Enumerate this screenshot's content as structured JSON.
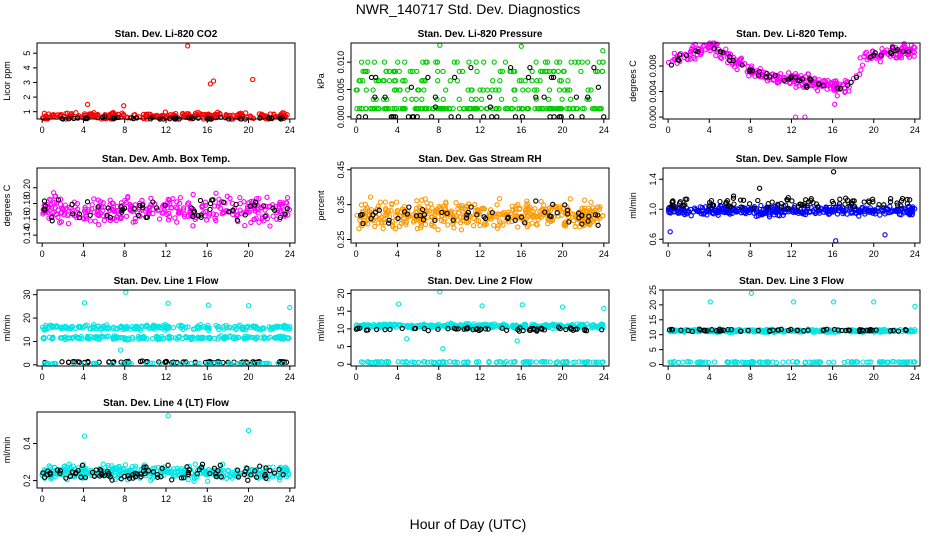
{
  "figure": {
    "title": "NWR_140717  Std. Dev. Diagnostics",
    "xlabel": "Hour of Day (UTC)"
  },
  "chart_data": [
    {
      "type": "scatter",
      "title": "Stan. Dev. Li-820 CO2",
      "ylabel": "Licor ppm",
      "xlim": [
        -0.5,
        24.5
      ],
      "ylim": [
        0.5,
        5.7
      ],
      "xticks": [
        0,
        4,
        8,
        12,
        16,
        20,
        24
      ],
      "yticks": [
        1,
        2,
        3,
        4,
        5
      ],
      "yticklabels": [
        "1",
        "2",
        "3",
        "4",
        "5"
      ],
      "grid": false,
      "series": [
        {
          "color": "#ff0000",
          "count": 260,
          "base": 0.7,
          "spread": 0.35,
          "extras": [
            [
              14.1,
              5.5
            ],
            [
              16.3,
              2.9
            ],
            [
              16.6,
              3.1
            ],
            [
              20.4,
              3.2
            ],
            [
              4.4,
              1.5
            ],
            [
              7.9,
              1.4
            ]
          ]
        },
        {
          "color": "#000000",
          "count": 45,
          "base": 0.55,
          "spread": 0.12,
          "extras": []
        }
      ]
    },
    {
      "type": "scatter",
      "title": "Stan. Dev. Li-820 Pressure",
      "ylabel": "kPa",
      "xlim": [
        -0.5,
        24.5
      ],
      "ylim": [
        -0.0004,
        0.0135
      ],
      "xticks": [
        0,
        4,
        8,
        12,
        16,
        20,
        24
      ],
      "yticks": [
        0.0,
        0.005,
        0.01
      ],
      "yticklabels": [
        "0.000",
        "0.005",
        "0.010"
      ],
      "grid": false,
      "series": [
        {
          "color": "#00cc00",
          "count": 300,
          "base": 0.0015,
          "spread": 0.0085,
          "levels": true,
          "extras": [
            [
              8.1,
              0.0131
            ],
            [
              23.9,
              0.0121
            ],
            [
              16.0,
              0.0129
            ]
          ]
        },
        {
          "color": "#000000",
          "count": 50,
          "base": 0.0,
          "spread": 0.009,
          "levels": true,
          "extras": []
        }
      ]
    },
    {
      "type": "scatter",
      "title": "Stan. Dev. Li-820 Temp.",
      "ylabel": "degrees C",
      "xlim": [
        -0.5,
        24.5
      ],
      "ylim": [
        -0.0003,
        0.0116
      ],
      "xticks": [
        0,
        4,
        8,
        12,
        16,
        20,
        24
      ],
      "yticks": [
        0.0,
        0.004,
        0.008
      ],
      "yticklabels": [
        "0.000",
        "0.004",
        "0.008"
      ],
      "grid": false,
      "series": [
        {
          "color": "#ff00ff",
          "count": 320,
          "curve": true,
          "spread": 0.0016,
          "extras": [
            [
              12.4,
              0.0
            ],
            [
              13.3,
              0.0
            ],
            [
              16.2,
              0.002
            ]
          ]
        },
        {
          "color": "#000000",
          "count": 55,
          "curve": true,
          "spread": 0.0012,
          "extras": []
        }
      ]
    },
    {
      "type": "scatter",
      "title": "Stan. Dev. Amb. Box Temp.",
      "ylabel": "degrees C",
      "xlim": [
        -0.5,
        24.5
      ],
      "ylim": [
        0.13,
        0.225
      ],
      "xticks": [
        0,
        4,
        8,
        12,
        16,
        20,
        24
      ],
      "yticks": [
        0.14,
        0.16,
        0.18,
        0.2
      ],
      "yticklabels": [
        "0.14",
        "0.16",
        "0.18",
        "0.20"
      ],
      "grid": false,
      "series": [
        {
          "color": "#ff00ff",
          "count": 320,
          "base": 0.172,
          "spread": 0.024,
          "extras": []
        },
        {
          "color": "#000000",
          "count": 60,
          "base": 0.172,
          "spread": 0.02,
          "extras": []
        }
      ]
    },
    {
      "type": "scatter",
      "title": "Stan. Dev. Gas Stream RH",
      "ylabel": "percent",
      "xlim": [
        -0.5,
        24.5
      ],
      "ylim": [
        0.24,
        0.455
      ],
      "xticks": [
        0,
        4,
        8,
        12,
        16,
        20,
        24
      ],
      "yticks": [
        0.25,
        0.35,
        0.45
      ],
      "yticklabels": [
        "0.25",
        "0.35",
        "0.45"
      ],
      "grid": false,
      "series": [
        {
          "color": "#ff9900",
          "count": 420,
          "base": 0.322,
          "spread": 0.055,
          "extras": []
        },
        {
          "color": "#000000",
          "count": 55,
          "base": 0.322,
          "spread": 0.05,
          "extras": []
        }
      ]
    },
    {
      "type": "scatter",
      "title": "Stan. Dev. Sample Flow",
      "ylabel": "ml/min",
      "xlim": [
        -0.5,
        24.5
      ],
      "ylim": [
        0.55,
        1.55
      ],
      "xticks": [
        0,
        4,
        8,
        12,
        16,
        20,
        24
      ],
      "yticks": [
        0.6,
        1.0,
        1.4
      ],
      "yticklabels": [
        "0.6",
        "1.0",
        "1.4"
      ],
      "grid": false,
      "series": [
        {
          "color": "#0000ff",
          "count": 380,
          "base": 0.98,
          "spread": 0.09,
          "extras": [
            [
              16.3,
              0.58
            ],
            [
              21.1,
              0.66
            ],
            [
              0.2,
              0.7
            ]
          ]
        },
        {
          "color": "#000000",
          "count": 90,
          "base": 1.08,
          "spread": 0.12,
          "extras": [
            [
              16.1,
              1.5
            ],
            [
              8.9,
              1.28
            ]
          ]
        }
      ]
    },
    {
      "type": "scatter",
      "title": "Stan. Dev. Line 1 Flow",
      "ylabel": "ml/min",
      "xlim": [
        -0.5,
        24.5
      ],
      "ylim": [
        -0.5,
        32
      ],
      "xticks": [
        0,
        4,
        8,
        12,
        16,
        20,
        24
      ],
      "yticks": [
        0,
        10,
        20,
        30
      ],
      "yticklabels": [
        "0",
        "10",
        "20",
        "30"
      ],
      "grid": false,
      "series": [
        {
          "color": "#00e5e5",
          "count": 220,
          "base": 16.0,
          "spread": 1.6,
          "extras": []
        },
        {
          "color": "#00e5e5",
          "count": 200,
          "base": 11.6,
          "spread": 1.0,
          "extras": [
            [
              4.1,
              26.5
            ],
            [
              8.1,
              31.0
            ],
            [
              12.2,
              26.3
            ],
            [
              16.1,
              25.5
            ],
            [
              20.0,
              25.3
            ],
            [
              24.0,
              24.5
            ],
            [
              7.6,
              6.3
            ]
          ]
        },
        {
          "color": "#000000",
          "count": 70,
          "base": 1.2,
          "spread": 0.5,
          "extras": []
        },
        {
          "color": "#00e5e5",
          "count": 60,
          "base": 0.6,
          "spread": 0.3,
          "extras": []
        }
      ]
    },
    {
      "type": "scatter",
      "title": "Stan. Dev. Line 2 Flow",
      "ylabel": "ml/min",
      "xlim": [
        -0.5,
        24.5
      ],
      "ylim": [
        -0.5,
        21
      ],
      "xticks": [
        0,
        4,
        8,
        12,
        16,
        20,
        24
      ],
      "yticks": [
        0,
        5,
        10,
        15,
        20
      ],
      "yticklabels": [
        "0",
        "5",
        "10",
        "15",
        "20"
      ],
      "grid": false,
      "series": [
        {
          "color": "#00e5e5",
          "count": 380,
          "base": 10.8,
          "spread": 0.9,
          "extras": [
            [
              4.1,
              17.0
            ],
            [
              8.1,
              20.5
            ],
            [
              12.2,
              16.5
            ],
            [
              16.1,
              16.8
            ],
            [
              20.0,
              16.2
            ],
            [
              24.0,
              15.8
            ],
            [
              8.4,
              4.4
            ],
            [
              15.6,
              6.6
            ],
            [
              4.9,
              7.2
            ]
          ]
        },
        {
          "color": "#000000",
          "count": 60,
          "base": 9.9,
          "spread": 0.7,
          "extras": []
        },
        {
          "color": "#00e5e5",
          "count": 110,
          "base": 0.6,
          "spread": 0.3,
          "extras": []
        }
      ]
    },
    {
      "type": "scatter",
      "title": "Stan. Dev. Line 3 Flow",
      "ylabel": "ml/min",
      "xlim": [
        -0.5,
        24.5
      ],
      "ylim": [
        -0.5,
        25
      ],
      "xticks": [
        0,
        4,
        8,
        12,
        16,
        20,
        24
      ],
      "yticks": [
        0,
        5,
        10,
        15,
        20,
        25
      ],
      "yticklabels": [
        "0",
        "5",
        "10",
        "15",
        "20",
        "25"
      ],
      "grid": false,
      "series": [
        {
          "color": "#00e5e5",
          "count": 360,
          "base": 11.3,
          "spread": 0.7,
          "extras": [
            [
              4.1,
              21.0
            ],
            [
              8.1,
              23.9
            ],
            [
              12.2,
              21.0
            ],
            [
              16.1,
              21.0
            ],
            [
              20.0,
              21.0
            ],
            [
              24.0,
              19.5
            ]
          ]
        },
        {
          "color": "#000000",
          "count": 60,
          "base": 11.5,
          "spread": 0.6,
          "extras": []
        },
        {
          "color": "#00e5e5",
          "count": 110,
          "base": 0.8,
          "spread": 0.3,
          "extras": []
        }
      ]
    },
    {
      "type": "scatter",
      "title": "Stan. Dev. Line 4 (LT) Flow",
      "ylabel": "ml/min",
      "xlim": [
        -0.5,
        24.5
      ],
      "ylim": [
        0.16,
        0.57
      ],
      "xticks": [
        0,
        4,
        8,
        12,
        16,
        20,
        24
      ],
      "yticks": [
        0.2,
        0.4
      ],
      "yticklabels": [
        "0.2",
        "0.4"
      ],
      "grid": false,
      "series": [
        {
          "color": "#00e5e5",
          "count": 360,
          "base": 0.245,
          "spread": 0.055,
          "extras": [
            [
              4.1,
              0.44
            ],
            [
              12.2,
              0.55
            ],
            [
              20.0,
              0.47
            ]
          ]
        },
        {
          "color": "#000000",
          "count": 90,
          "base": 0.245,
          "spread": 0.06,
          "extras": []
        }
      ]
    }
  ]
}
